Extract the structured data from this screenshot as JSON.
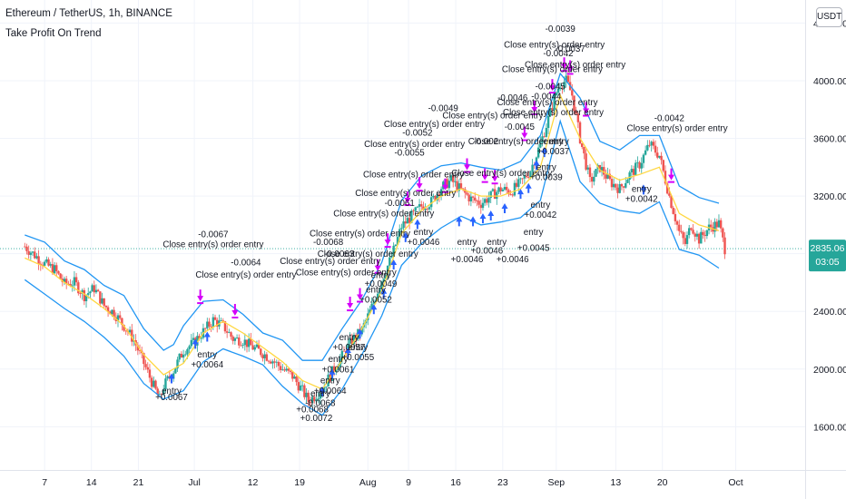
{
  "header": {
    "symbol_title": "Ethereum / TetherUS, 1h, BINANCE",
    "indicator_name": "Take Profit On Trend",
    "currency_button": "USDT"
  },
  "price_badge": {
    "price": "2835.06",
    "countdown": "03:05",
    "color": "#26a69a"
  },
  "colors": {
    "band": "#2196f3",
    "midline": "#ffd740",
    "up_arrow": "#2962ff",
    "down_arrow": "#d500f9",
    "candle_up": "#26a69a",
    "candle_down": "#ef5350"
  },
  "chart_data": {
    "type": "candlestick",
    "ylim": [
      1300,
      4560
    ],
    "y_ticks": [
      1600,
      2000,
      2400,
      2800,
      3200,
      3600,
      4000,
      4400
    ],
    "y_tick_labels": [
      "1600.00",
      "2000.00",
      "2400.00",
      "2800.00",
      "3200.00",
      "3600.00",
      "4000.00",
      "4400.00"
    ],
    "x_ticks": [
      {
        "label": "7",
        "x": 1
      },
      {
        "label": "14",
        "x": 3.36
      },
      {
        "label": "21",
        "x": 5.73
      },
      {
        "label": "Jul",
        "x": 8.55
      },
      {
        "label": "12",
        "x": 11.5
      },
      {
        "label": "19",
        "x": 13.86
      },
      {
        "label": "Aug",
        "x": 17.3
      },
      {
        "label": "9",
        "x": 19.35
      },
      {
        "label": "16",
        "x": 21.73
      },
      {
        "label": "23",
        "x": 24.1
      },
      {
        "label": "Sep",
        "x": 26.8
      },
      {
        "label": "13",
        "x": 29.8
      },
      {
        "label": "20",
        "x": 32.15
      },
      {
        "label": "Oct",
        "x": 35.85
      }
    ],
    "x_range": [
      -1.25,
      39.35
    ],
    "last_price": 2835.06,
    "price_path": [
      [
        0,
        2850
      ],
      [
        0.5,
        2790
      ],
      [
        1,
        2730
      ],
      [
        1.5,
        2690
      ],
      [
        2,
        2590
      ],
      [
        2.5,
        2600
      ],
      [
        3,
        2510
      ],
      [
        3.5,
        2560
      ],
      [
        4,
        2440
      ],
      [
        4.5,
        2390
      ],
      [
        5,
        2300
      ],
      [
        5.5,
        2200
      ],
      [
        6,
        2040
      ],
      [
        6.5,
        1880
      ],
      [
        6.8,
        1790
      ],
      [
        7,
        1880
      ],
      [
        7.5,
        1990
      ],
      [
        8,
        2130
      ],
      [
        8.5,
        2180
      ],
      [
        9,
        2260
      ],
      [
        9.5,
        2340
      ],
      [
        10,
        2300
      ],
      [
        10.5,
        2210
      ],
      [
        11,
        2200
      ],
      [
        11.5,
        2150
      ],
      [
        12,
        2110
      ],
      [
        12.5,
        2060
      ],
      [
        13,
        2000
      ],
      [
        13.5,
        1950
      ],
      [
        14,
        1850
      ],
      [
        14.3,
        1780
      ],
      [
        14.6,
        1810
      ],
      [
        15,
        1860
      ],
      [
        15.5,
        1980
      ],
      [
        16,
        2090
      ],
      [
        16.5,
        2200
      ],
      [
        17,
        2270
      ],
      [
        17.5,
        2430
      ],
      [
        18,
        2620
      ],
      [
        18.5,
        2780
      ],
      [
        19,
        2990
      ],
      [
        19.5,
        3060
      ],
      [
        20,
        3130
      ],
      [
        20.5,
        3160
      ],
      [
        21,
        3260
      ],
      [
        21.5,
        3310
      ],
      [
        22,
        3240
      ],
      [
        22.5,
        3180
      ],
      [
        23,
        3150
      ],
      [
        23.5,
        3200
      ],
      [
        24,
        3250
      ],
      [
        24.5,
        3230
      ],
      [
        25,
        3290
      ],
      [
        25.5,
        3380
      ],
      [
        26,
        3560
      ],
      [
        26.5,
        3780
      ],
      [
        26.8,
        3920
      ],
      [
        27,
        3980
      ],
      [
        27.3,
        4000
      ],
      [
        27.6,
        3900
      ],
      [
        28,
        3600
      ],
      [
        28.5,
        3300
      ],
      [
        29,
        3400
      ],
      [
        29.5,
        3300
      ],
      [
        30,
        3250
      ],
      [
        30.5,
        3350
      ],
      [
        31,
        3420
      ],
      [
        31.5,
        3560
      ],
      [
        32,
        3480
      ],
      [
        32.5,
        3200
      ],
      [
        33,
        2950
      ],
      [
        33.3,
        2870
      ],
      [
        33.6,
        3000
      ],
      [
        34,
        2900
      ],
      [
        34.5,
        2980
      ],
      [
        35,
        3010
      ],
      [
        35.3,
        2835
      ]
    ],
    "upper_band_path": [
      [
        0,
        2930
      ],
      [
        1,
        2880
      ],
      [
        2,
        2750
      ],
      [
        3,
        2690
      ],
      [
        4,
        2580
      ],
      [
        5,
        2510
      ],
      [
        6,
        2280
      ],
      [
        7,
        2130
      ],
      [
        7.5,
        2170
      ],
      [
        8,
        2300
      ],
      [
        9,
        2470
      ],
      [
        10,
        2480
      ],
      [
        11,
        2380
      ],
      [
        12,
        2250
      ],
      [
        13,
        2200
      ],
      [
        14,
        2060
      ],
      [
        15,
        2060
      ],
      [
        16,
        2280
      ],
      [
        17,
        2480
      ],
      [
        18,
        2740
      ],
      [
        19,
        3170
      ],
      [
        20,
        3340
      ],
      [
        21,
        3410
      ],
      [
        22,
        3430
      ],
      [
        23,
        3400
      ],
      [
        24,
        3380
      ],
      [
        25,
        3440
      ],
      [
        26,
        3620
      ],
      [
        27,
        4050
      ],
      [
        28,
        3880
      ],
      [
        29,
        3580
      ],
      [
        30,
        3520
      ],
      [
        31,
        3620
      ],
      [
        32,
        3620
      ],
      [
        33,
        3270
      ],
      [
        34,
        3190
      ],
      [
        35,
        3150
      ]
    ],
    "lower_band_path": [
      [
        0,
        2620
      ],
      [
        1,
        2520
      ],
      [
        2,
        2420
      ],
      [
        3,
        2330
      ],
      [
        4,
        2220
      ],
      [
        5,
        2090
      ],
      [
        6,
        1900
      ],
      [
        7,
        1790
      ],
      [
        8,
        1850
      ],
      [
        9,
        2050
      ],
      [
        10,
        2140
      ],
      [
        11,
        2090
      ],
      [
        12,
        2030
      ],
      [
        13,
        1880
      ],
      [
        14,
        1760
      ],
      [
        15,
        1680
      ],
      [
        16,
        1860
      ],
      [
        17,
        2100
      ],
      [
        18,
        2370
      ],
      [
        19,
        2720
      ],
      [
        20,
        2870
      ],
      [
        21,
        2980
      ],
      [
        22,
        3060
      ],
      [
        23,
        3000
      ],
      [
        24,
        3020
      ],
      [
        25,
        3050
      ],
      [
        26,
        3170
      ],
      [
        27,
        3720
      ],
      [
        28,
        3300
      ],
      [
        29,
        3150
      ],
      [
        30,
        3100
      ],
      [
        31,
        3080
      ],
      [
        32,
        3160
      ],
      [
        33,
        2830
      ],
      [
        34,
        2790
      ],
      [
        35,
        2700
      ]
    ],
    "mid_line_path": [
      [
        0,
        2770
      ],
      [
        1,
        2710
      ],
      [
        2,
        2600
      ],
      [
        3,
        2520
      ],
      [
        4,
        2420
      ],
      [
        5,
        2300
      ],
      [
        6,
        2100
      ],
      [
        7,
        1960
      ],
      [
        8,
        2040
      ],
      [
        9,
        2250
      ],
      [
        10,
        2330
      ],
      [
        11,
        2250
      ],
      [
        12,
        2150
      ],
      [
        13,
        2050
      ],
      [
        14,
        1920
      ],
      [
        15,
        1860
      ],
      [
        16,
        2060
      ],
      [
        17,
        2280
      ],
      [
        18,
        2540
      ],
      [
        19,
        2940
      ],
      [
        20,
        3100
      ],
      [
        21,
        3200
      ],
      [
        22,
        3250
      ],
      [
        23,
        3200
      ],
      [
        24,
        3200
      ],
      [
        25,
        3250
      ],
      [
        26,
        3400
      ],
      [
        27,
        3900
      ],
      [
        28,
        3600
      ],
      [
        29,
        3380
      ],
      [
        30,
        3310
      ],
      [
        31,
        3350
      ],
      [
        32,
        3400
      ],
      [
        33,
        3080
      ],
      [
        34,
        3000
      ],
      [
        35,
        2960
      ]
    ],
    "entry_markers": [
      [
        7.4,
        1970
      ],
      [
        8.6,
        2210
      ],
      [
        9.2,
        2260
      ],
      [
        15,
        1880
      ],
      [
        15.5,
        2000
      ],
      [
        16.3,
        2150
      ],
      [
        16.9,
        2280
      ],
      [
        17.6,
        2450
      ],
      [
        18.1,
        2560
      ],
      [
        18.6,
        2760
      ],
      [
        19.2,
        2950
      ],
      [
        19.8,
        3040
      ],
      [
        21.9,
        3060
      ],
      [
        22.6,
        3060
      ],
      [
        23.1,
        3080
      ],
      [
        23.5,
        3100
      ],
      [
        24.2,
        3150
      ],
      [
        25,
        3250
      ],
      [
        25.4,
        3290
      ],
      [
        25.8,
        3450
      ],
      [
        26.2,
        3540
      ],
      [
        31.2,
        3280
      ]
    ],
    "exit_markers": [
      [
        8.85,
        2470
      ],
      [
        10.6,
        2370
      ],
      [
        16.4,
        2420
      ],
      [
        16.9,
        2480
      ],
      [
        17.8,
        2680
      ],
      [
        18.3,
        2860
      ],
      [
        19.3,
        3150
      ],
      [
        19.9,
        3250
      ],
      [
        21.2,
        3240
      ],
      [
        22.3,
        3380
      ],
      [
        23.2,
        3310
      ],
      [
        23.7,
        3300
      ],
      [
        25.2,
        3600
      ],
      [
        25.7,
        3780
      ],
      [
        26.6,
        3930
      ],
      [
        27.2,
        4080
      ],
      [
        27.5,
        4060
      ],
      [
        28.3,
        3770
      ],
      [
        32.6,
        3310
      ]
    ],
    "annotations": [
      {
        "text": "-0.0067",
        "x": 9.5,
        "y": 2915
      },
      {
        "text": "Close entry(s) order entry",
        "x": 9.5,
        "y": 2845
      },
      {
        "text": "-0.0064",
        "x": 11.15,
        "y": 2720
      },
      {
        "text": "Close entry(s) order entry",
        "x": 11.15,
        "y": 2635
      },
      {
        "text": "entry",
        "x": 7.4,
        "y": 1830
      },
      {
        "text": "+0.0067",
        "x": 7.4,
        "y": 1785
      },
      {
        "text": "entry",
        "x": 9.2,
        "y": 2080
      },
      {
        "text": "+0.0064",
        "x": 9.2,
        "y": 2010
      },
      {
        "text": "-0.0068",
        "x": 15.3,
        "y": 2860
      },
      {
        "text": "Close entry(s) order entry",
        "x": 15.4,
        "y": 2730
      },
      {
        "text": "Close entry(s) order entry",
        "x": 16.2,
        "y": 2650
      },
      {
        "text": "-0.0063",
        "x": 15.85,
        "y": 2780
      },
      {
        "text": "Close entry(s) order entry",
        "x": 17.3,
        "y": 2780
      },
      {
        "text": "Close entry(s) order entry",
        "x": 16.9,
        "y": 2920
      },
      {
        "text": "Close entry(s) order entry",
        "x": 18.1,
        "y": 3060
      },
      {
        "text": "-0.0061",
        "x": 18.9,
        "y": 3130
      },
      {
        "text": "Close entry(s) order entry",
        "x": 19.2,
        "y": 3200
      },
      {
        "text": "Close entry(s) order entry",
        "x": 19.6,
        "y": 3330
      },
      {
        "text": "-0.0055",
        "x": 19.4,
        "y": 3480
      },
      {
        "text": "Close entry(s) order entry",
        "x": 19.65,
        "y": 3540
      },
      {
        "text": "-0.0052",
        "x": 19.8,
        "y": 3620
      },
      {
        "text": "Close entry(s) order entry",
        "x": 20.65,
        "y": 3680
      },
      {
        "text": "-0.0049",
        "x": 21.1,
        "y": 3790
      },
      {
        "text": "Close entry(s) order entry",
        "x": 23.6,
        "y": 3740
      },
      {
        "text": "-0.0046",
        "x": 24.6,
        "y": 3860
      },
      {
        "text": "Close entry(s) order entry",
        "x": 24.05,
        "y": 3340
      },
      {
        "text": "-0.002",
        "x": 23.25,
        "y": 3560
      },
      {
        "text": "Close entry(s) order entry",
        "x": 24.9,
        "y": 3560
      },
      {
        "text": "-0.0045",
        "x": 24.95,
        "y": 3660
      },
      {
        "text": "Close entry(s) order entry",
        "x": 26.35,
        "y": 3830
      },
      {
        "text": "-0.0044",
        "x": 26.3,
        "y": 3870
      },
      {
        "text": "-0.0045",
        "x": 26.5,
        "y": 3940
      },
      {
        "text": "Close entry(s) order entry",
        "x": 26.65,
        "y": 3760
      },
      {
        "text": "Close entry(s) order entry",
        "x": 26.7,
        "y": 4230
      },
      {
        "text": "Close entry(s) order entry",
        "x": 27.75,
        "y": 4090
      },
      {
        "text": "-0.0039",
        "x": 27.0,
        "y": 4340
      },
      {
        "text": "-0.0042",
        "x": 26.9,
        "y": 4170
      },
      {
        "text": "Close entry(s) order entry",
        "x": 26.6,
        "y": 4060
      },
      {
        "text": "-0.0037",
        "x": 27.5,
        "y": 4200
      },
      {
        "text": "entry",
        "x": 16.35,
        "y": 2200
      },
      {
        "text": "+0.0057",
        "x": 16.35,
        "y": 2130
      },
      {
        "text": "entry",
        "x": 16.8,
        "y": 2130
      },
      {
        "text": "+0.0055",
        "x": 16.8,
        "y": 2060
      },
      {
        "text": "entry",
        "x": 15.8,
        "y": 2050
      },
      {
        "text": "+0.0061",
        "x": 15.8,
        "y": 1975
      },
      {
        "text": "entry",
        "x": 15.4,
        "y": 1900
      },
      {
        "text": "+0.0064",
        "x": 15.4,
        "y": 1830
      },
      {
        "text": "entry",
        "x": 14.9,
        "y": 1810
      },
      {
        "text": "-0.0068",
        "x": 14.9,
        "y": 1745
      },
      {
        "text": "+0.0072",
        "x": 14.7,
        "y": 1640
      },
      {
        "text": "+0.0068",
        "x": 14.5,
        "y": 1700
      },
      {
        "text": "entry",
        "x": 17.7,
        "y": 2530
      },
      {
        "text": "+0.0052",
        "x": 17.7,
        "y": 2460
      },
      {
        "text": "entry",
        "x": 17.95,
        "y": 2630
      },
      {
        "text": "+0.0049",
        "x": 17.95,
        "y": 2570
      },
      {
        "text": "entry",
        "x": 20.1,
        "y": 2930
      },
      {
        "text": "+0.0046",
        "x": 20.1,
        "y": 2860
      },
      {
        "text": "entry",
        "x": 22.3,
        "y": 2860
      },
      {
        "text": "+0.0046",
        "x": 22.3,
        "y": 2740
      },
      {
        "text": "+0.0046",
        "x": 23.3,
        "y": 2800
      },
      {
        "text": "entry",
        "x": 23.8,
        "y": 2860
      },
      {
        "text": "+0.0046",
        "x": 24.6,
        "y": 2740
      },
      {
        "text": "entry",
        "x": 25.65,
        "y": 2930
      },
      {
        "text": "+0.0045",
        "x": 25.65,
        "y": 2820
      },
      {
        "text": "entry",
        "x": 26.0,
        "y": 3120
      },
      {
        "text": "+0.0042",
        "x": 26.0,
        "y": 3050
      },
      {
        "text": "entry",
        "x": 26.3,
        "y": 3380
      },
      {
        "text": "+0.0039",
        "x": 26.3,
        "y": 3310
      },
      {
        "text": "entry",
        "x": 26.65,
        "y": 3560
      },
      {
        "text": "+0.0037",
        "x": 26.65,
        "y": 3490
      },
      {
        "text": "entry",
        "x": 31.1,
        "y": 3230
      },
      {
        "text": "+0.0042",
        "x": 31.1,
        "y": 3160
      },
      {
        "text": "-0.0042",
        "x": 32.5,
        "y": 3720
      },
      {
        "text": "Close entry(s) order entry",
        "x": 32.9,
        "y": 3650
      }
    ]
  }
}
